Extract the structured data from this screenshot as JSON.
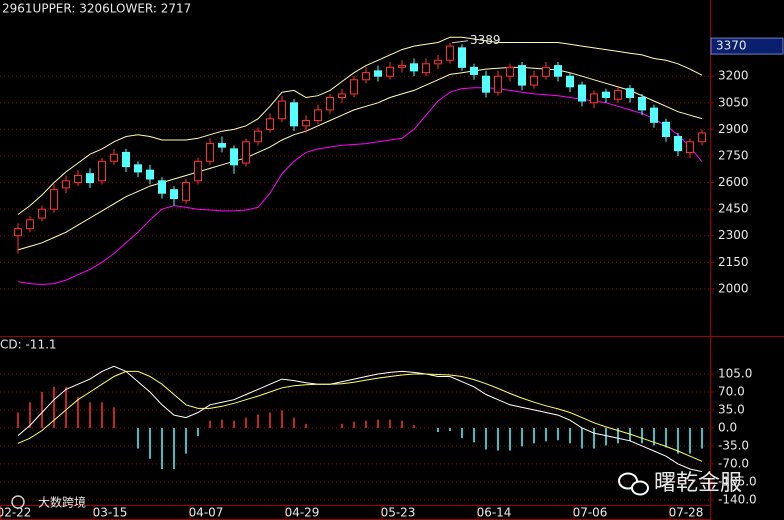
{
  "chart_data": [
    {
      "type": "candlestick",
      "open": [
        2300,
        2340,
        2400,
        2450,
        2570,
        2600,
        2650,
        2610,
        2720,
        2770,
        2700,
        2670,
        2610,
        2560,
        2500,
        2610,
        2720,
        2820,
        2790,
        2710,
        2830,
        2900,
        2960,
        3050,
        2920,
        2950,
        3010,
        3080,
        3100,
        3180,
        3230,
        3200,
        3250,
        3270,
        3220,
        3270,
        3290,
        3360,
        3250,
        3200,
        3110,
        3200,
        3260,
        3150,
        3200,
        3260,
        3200,
        3150,
        3050,
        3110,
        3070,
        3130,
        3080,
        3020,
        2940,
        2860,
        2770,
        2830
      ],
      "high": [
        2370,
        2410,
        2470,
        2590,
        2640,
        2670,
        2680,
        2740,
        2790,
        2790,
        2720,
        2700,
        2630,
        2580,
        2620,
        2740,
        2850,
        2860,
        2810,
        2850,
        2910,
        2990,
        3090,
        3070,
        2980,
        3040,
        3100,
        3130,
        3200,
        3250,
        3260,
        3280,
        3290,
        3300,
        3300,
        3320,
        3389,
        3380,
        3270,
        3230,
        3230,
        3270,
        3280,
        3230,
        3280,
        3280,
        3220,
        3170,
        3120,
        3130,
        3140,
        3150,
        3100,
        3040,
        2960,
        2880,
        2850,
        2900
      ],
      "low": [
        2200,
        2320,
        2380,
        2430,
        2540,
        2580,
        2570,
        2590,
        2700,
        2660,
        2630,
        2590,
        2510,
        2470,
        2480,
        2590,
        2700,
        2770,
        2650,
        2690,
        2810,
        2880,
        2940,
        2890,
        2880,
        2930,
        2990,
        3050,
        3080,
        3160,
        3170,
        3180,
        3220,
        3200,
        3200,
        3240,
        3270,
        3230,
        3180,
        3080,
        3090,
        3170,
        3120,
        3130,
        3180,
        3170,
        3110,
        3030,
        3020,
        3050,
        3050,
        3050,
        2980,
        2910,
        2830,
        2750,
        2740,
        2810
      ],
      "close": [
        2340,
        2390,
        2450,
        2560,
        2610,
        2640,
        2600,
        2720,
        2760,
        2690,
        2660,
        2620,
        2540,
        2510,
        2600,
        2720,
        2820,
        2800,
        2700,
        2830,
        2890,
        2960,
        3060,
        2920,
        2950,
        3010,
        3080,
        3100,
        3180,
        3220,
        3200,
        3250,
        3260,
        3230,
        3270,
        3290,
        3370,
        3250,
        3210,
        3110,
        3200,
        3250,
        3150,
        3200,
        3250,
        3200,
        3140,
        3060,
        3100,
        3080,
        3120,
        3080,
        3010,
        2940,
        2860,
        2780,
        2830,
        2880
      ],
      "up_color": "#ff3232",
      "down_color": "#54ffff",
      "series": [
        {
          "name": "2961",
          "color": "#ffffb0",
          "legend_color": "#ffffff",
          "values": [
            2220,
            2240,
            2260,
            2290,
            2320,
            2360,
            2400,
            2440,
            2480,
            2520,
            2550,
            2580,
            2600,
            2620,
            2640,
            2660,
            2680,
            2700,
            2720,
            2740,
            2770,
            2800,
            2840,
            2870,
            2890,
            2920,
            2950,
            2980,
            3010,
            3030,
            3050,
            3080,
            3100,
            3120,
            3150,
            3180,
            3210,
            3220,
            3230,
            3240,
            3245,
            3250,
            3250,
            3245,
            3240,
            3235,
            3220,
            3200,
            3180,
            3160,
            3140,
            3120,
            3090,
            3060,
            3030,
            3000,
            2980,
            2961
          ]
        },
        {
          "name": "UPPER: 3206",
          "color": "#ffffb0",
          "legend_color": "#ffff60",
          "values": [
            2420,
            2470,
            2530,
            2600,
            2660,
            2710,
            2760,
            2790,
            2830,
            2860,
            2870,
            2860,
            2840,
            2840,
            2840,
            2850,
            2870,
            2890,
            2900,
            2920,
            2960,
            3030,
            3110,
            3120,
            3080,
            3090,
            3120,
            3170,
            3220,
            3260,
            3290,
            3320,
            3350,
            3370,
            3380,
            3390,
            3420,
            3420,
            3410,
            3400,
            3390,
            3390,
            3390,
            3390,
            3390,
            3390,
            3380,
            3370,
            3360,
            3350,
            3340,
            3330,
            3320,
            3300,
            3290,
            3270,
            3240,
            3206
          ]
        },
        {
          "name": "LOWER: 2717",
          "color": "#ff00ff",
          "legend_color": "#ff00ff",
          "values": [
            2040,
            2030,
            2025,
            2030,
            2050,
            2080,
            2110,
            2150,
            2200,
            2260,
            2320,
            2390,
            2450,
            2470,
            2460,
            2450,
            2445,
            2440,
            2440,
            2445,
            2460,
            2540,
            2650,
            2720,
            2770,
            2790,
            2800,
            2810,
            2815,
            2820,
            2830,
            2840,
            2850,
            2900,
            2980,
            3060,
            3110,
            3130,
            3135,
            3135,
            3130,
            3120,
            3110,
            3100,
            3095,
            3090,
            3080,
            3070,
            3060,
            3050,
            3030,
            3010,
            2990,
            2960,
            2920,
            2870,
            2800,
            2717
          ]
        }
      ],
      "ylim": [
        1740,
        3630
      ],
      "yticks": [
        2000,
        2150,
        2300,
        2450,
        2600,
        2750,
        2900,
        3050,
        3200
      ],
      "price_marker": 3370,
      "max_annotation": 3389,
      "grid": true
    },
    {
      "type": "macd",
      "title": "CD: -11.1",
      "categories": [
        "02-22",
        null,
        null,
        null,
        null,
        null,
        null,
        null,
        "03-15",
        null,
        null,
        null,
        null,
        null,
        null,
        null,
        "04-07",
        null,
        null,
        null,
        null,
        null,
        null,
        null,
        "04-29",
        null,
        null,
        null,
        null,
        null,
        null,
        null,
        "05-23",
        null,
        null,
        null,
        null,
        null,
        null,
        null,
        "06-14",
        null,
        null,
        null,
        null,
        null,
        null,
        null,
        "07-06",
        null,
        null,
        null,
        null,
        null,
        null,
        null,
        "07-28",
        null
      ],
      "histogram": {
        "up_color": "#ff3232",
        "down_color": "#54ffff",
        "values": [
          30,
          50,
          70,
          80,
          80,
          60,
          50,
          50,
          40,
          0,
          -40,
          -60,
          -80,
          -80,
          -50,
          -16,
          14,
          16,
          14,
          20,
          26,
          30,
          34,
          20,
          8,
          0,
          0,
          8,
          12,
          14,
          16,
          16,
          14,
          6,
          0,
          -8,
          -6,
          -20,
          -28,
          -42,
          -44,
          -44,
          -36,
          -30,
          -26,
          -24,
          -30,
          -40,
          -40,
          -34,
          -30,
          -26,
          -30,
          -34,
          -38,
          -50,
          -50,
          -40
        ]
      },
      "series": [
        {
          "color": "#ffffff",
          "values": [
            -15,
            5,
            30,
            55,
            75,
            85,
            95,
            110,
            120,
            110,
            90,
            70,
            45,
            25,
            20,
            30,
            45,
            50,
            55,
            65,
            75,
            85,
            95,
            92,
            88,
            85,
            85,
            90,
            95,
            100,
            105,
            108,
            110,
            108,
            105,
            100,
            100,
            90,
            80,
            65,
            55,
            45,
            40,
            35,
            30,
            25,
            15,
            0,
            -10,
            -15,
            -20,
            -25,
            -35,
            -45,
            -55,
            -70,
            -80,
            -85
          ]
        },
        {
          "color": "#ffff60",
          "values": [
            -30,
            -20,
            -5,
            15,
            35,
            55,
            70,
            85,
            100,
            110,
            110,
            100,
            85,
            65,
            45,
            38,
            38,
            42,
            48,
            55,
            62,
            70,
            78,
            82,
            84,
            85,
            85,
            86,
            89,
            93,
            97,
            100,
            103,
            105,
            105,
            104,
            103,
            100,
            94,
            86,
            77,
            67,
            58,
            50,
            43,
            37,
            30,
            20,
            10,
            2,
            -5,
            -12,
            -20,
            -28,
            -36,
            -45,
            -55,
            -65
          ]
        }
      ],
      "ylim": [
        -150,
        175
      ],
      "yticks": [
        {
          "value": -140,
          "label": "-140.0"
        },
        {
          "value": -105,
          "label": "-105.0"
        },
        {
          "value": -70,
          "label": "-70.0"
        },
        {
          "value": -35,
          "label": "-35.0"
        },
        {
          "value": 0,
          "label": "0.0"
        },
        {
          "value": 35,
          "label": "35.0"
        },
        {
          "value": 70,
          "label": "70.0"
        },
        {
          "value": 105,
          "label": "105.0"
        }
      ],
      "grid": true
    }
  ],
  "watermark": {
    "brand": "曙乾金服",
    "logo": "大数跨境"
  }
}
